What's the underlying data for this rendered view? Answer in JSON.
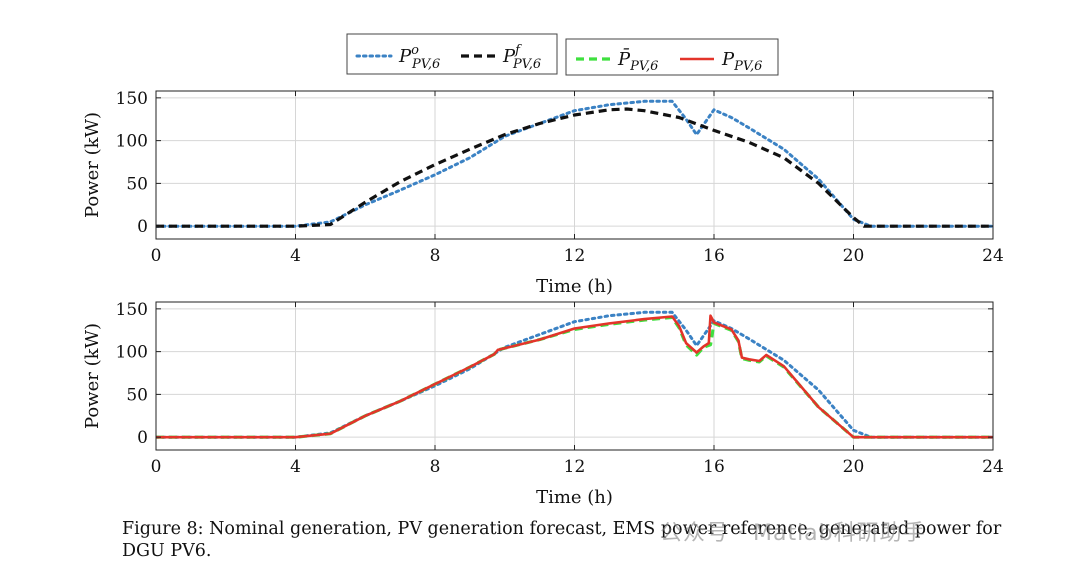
{
  "chart_data": [
    {
      "type": "line",
      "title": "",
      "xlabel": "Time (h)",
      "ylabel": "Power (kW)",
      "xlim": [
        0,
        24
      ],
      "ylim": [
        -15,
        158
      ],
      "xticks": [
        0,
        4,
        8,
        12,
        16,
        20,
        24
      ],
      "yticks": [
        0,
        50,
        100,
        150
      ],
      "grid": true,
      "series": [
        {
          "key": "nominal",
          "color": "#3b82c4",
          "dash": "dotted",
          "x": [
            0,
            4,
            4.6,
            5,
            6,
            7,
            8,
            9,
            10,
            11,
            12,
            13,
            14,
            14.8,
            15.2,
            15.5,
            16,
            16.5,
            17,
            18,
            19,
            20,
            20.5,
            24
          ],
          "y": [
            0,
            0,
            3,
            5,
            25,
            42,
            60,
            80,
            105,
            120,
            135,
            142,
            146,
            146,
            125,
            107,
            136,
            127,
            115,
            90,
            55,
            8,
            0,
            0
          ]
        },
        {
          "key": "forecast",
          "color": "#111111",
          "dash": "dashed",
          "x": [
            0,
            4,
            5,
            6,
            7,
            8,
            9,
            10,
            11,
            12,
            13,
            13.5,
            14,
            15,
            16,
            17,
            18,
            19,
            20,
            20.3,
            24
          ],
          "y": [
            0,
            0,
            2,
            28,
            52,
            72,
            90,
            107,
            120,
            130,
            136,
            137,
            135,
            127,
            112,
            98,
            80,
            50,
            10,
            0,
            0
          ]
        }
      ],
      "legend": {
        "placement": "top-center",
        "groups": [
          [
            {
              "series": "nominal",
              "label_base": "P",
              "label_sup": "o",
              "label_sub": "PV,6"
            },
            {
              "series": "forecast",
              "label_base": "P",
              "label_sup": "f",
              "label_sub": "PV,6"
            }
          ],
          [
            {
              "series": "ems_reference",
              "label_base": "P̄",
              "label_sup": "",
              "label_sub": "PV,6"
            },
            {
              "series": "generated",
              "label_base": "P",
              "label_sup": "",
              "label_sub": "PV,6"
            }
          ]
        ]
      }
    },
    {
      "type": "line",
      "title": "",
      "xlabel": "Time (h)",
      "ylabel": "Power (kW)",
      "xlim": [
        0,
        24
      ],
      "ylim": [
        -15,
        158
      ],
      "xticks": [
        0,
        4,
        8,
        12,
        16,
        20,
        24
      ],
      "yticks": [
        0,
        50,
        100,
        150
      ],
      "grid": true,
      "series": [
        {
          "key": "nominal",
          "color": "#3b82c4",
          "dash": "dotted",
          "x": [
            0,
            4,
            4.6,
            5,
            6,
            7,
            8,
            9,
            10,
            11,
            12,
            13,
            14,
            14.8,
            15.2,
            15.5,
            16,
            16.5,
            17,
            18,
            19,
            20,
            20.5,
            24
          ],
          "y": [
            0,
            0,
            3,
            5,
            25,
            42,
            60,
            80,
            105,
            120,
            135,
            142,
            146,
            146,
            125,
            107,
            136,
            127,
            115,
            90,
            55,
            8,
            0,
            0
          ]
        },
        {
          "key": "ems_reference",
          "color": "#3fe03f",
          "dash": "dashed",
          "x": [
            0,
            4,
            5,
            6,
            7,
            8,
            9,
            9.7,
            9.8,
            10,
            11,
            12,
            13,
            14,
            14.8,
            15,
            15.2,
            15.5,
            15.7,
            15.9,
            16,
            16.5,
            16.7,
            16.8,
            17,
            17.3,
            17.5,
            18,
            19,
            20,
            24
          ],
          "y": [
            0,
            0,
            4,
            25,
            42,
            62,
            82,
            97,
            102,
            104,
            114,
            126,
            132,
            137,
            140,
            128,
            108,
            96,
            105,
            108,
            133,
            125,
            112,
            92,
            90,
            88,
            95,
            82,
            35,
            0,
            0
          ]
        },
        {
          "key": "generated",
          "color": "#e3342a",
          "dash": "solid",
          "x": [
            0,
            4,
            5,
            6,
            7,
            8,
            9,
            9.7,
            9.8,
            10,
            11,
            12,
            13,
            14,
            14.8,
            15,
            15.2,
            15.5,
            15.7,
            15.85,
            15.9,
            16,
            16.5,
            16.7,
            16.8,
            17,
            17.3,
            17.5,
            18,
            19,
            20,
            24
          ],
          "y": [
            0,
            0,
            4,
            25,
            42,
            62,
            82,
            97,
            102,
            104,
            114,
            127,
            133,
            138,
            141,
            130,
            110,
            99,
            106,
            110,
            142,
            134,
            126,
            113,
            93,
            91,
            89,
            96,
            83,
            35,
            0,
            0
          ]
        }
      ]
    }
  ],
  "caption": "Figure 8: Nominal generation, PV generation forecast, EMS power reference, generated power for DGU PV6.",
  "watermark": "公众号 · Matlab科研助手"
}
